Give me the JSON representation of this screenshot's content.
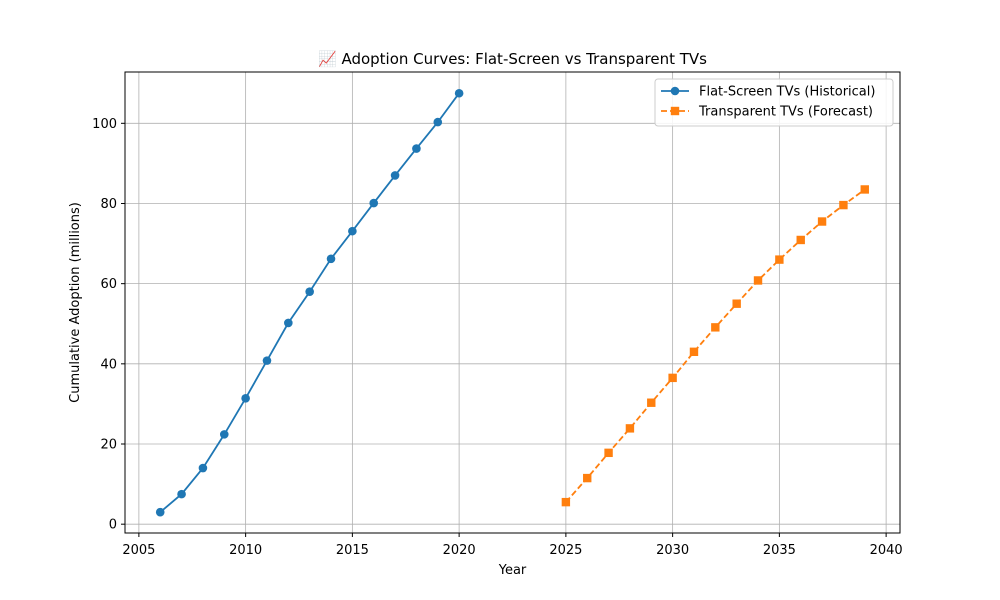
{
  "chart_data": {
    "type": "line",
    "title": "📈 Adoption Curves: Flat-Screen vs Transparent TVs",
    "xlabel": "Year",
    "ylabel": "Cumulative Adoption (millions)",
    "xlim": [
      2004.35,
      2040.65
    ],
    "ylim": [
      -2.2,
      112.8
    ],
    "x_ticks": [
      2005,
      2010,
      2015,
      2020,
      2025,
      2030,
      2035,
      2040
    ],
    "y_ticks": [
      0,
      20,
      40,
      60,
      80,
      100
    ],
    "grid": true,
    "legend_position": "top-right",
    "series": [
      {
        "name": "Flat-Screen TVs (Historical)",
        "color": "#1f77b4",
        "marker": "circle",
        "line_style": "solid",
        "x": [
          2006,
          2007,
          2008,
          2009,
          2010,
          2011,
          2012,
          2013,
          2014,
          2015,
          2016,
          2017,
          2018,
          2019,
          2020
        ],
        "y": [
          3.0,
          7.5,
          14.0,
          22.4,
          31.4,
          40.8,
          50.2,
          58.0,
          66.2,
          73.1,
          80.1,
          87.0,
          93.7,
          100.3,
          107.5
        ]
      },
      {
        "name": "Transparent TVs (Forecast)",
        "color": "#ff7f0e",
        "marker": "square",
        "line_style": "dashed",
        "x": [
          2025,
          2026,
          2027,
          2028,
          2029,
          2030,
          2031,
          2032,
          2033,
          2034,
          2035,
          2036,
          2037,
          2038,
          2039
        ],
        "y": [
          5.5,
          11.5,
          17.8,
          23.9,
          30.3,
          36.5,
          43.0,
          49.1,
          55.0,
          60.8,
          66.0,
          70.9,
          75.5,
          79.6,
          83.5
        ]
      }
    ]
  }
}
